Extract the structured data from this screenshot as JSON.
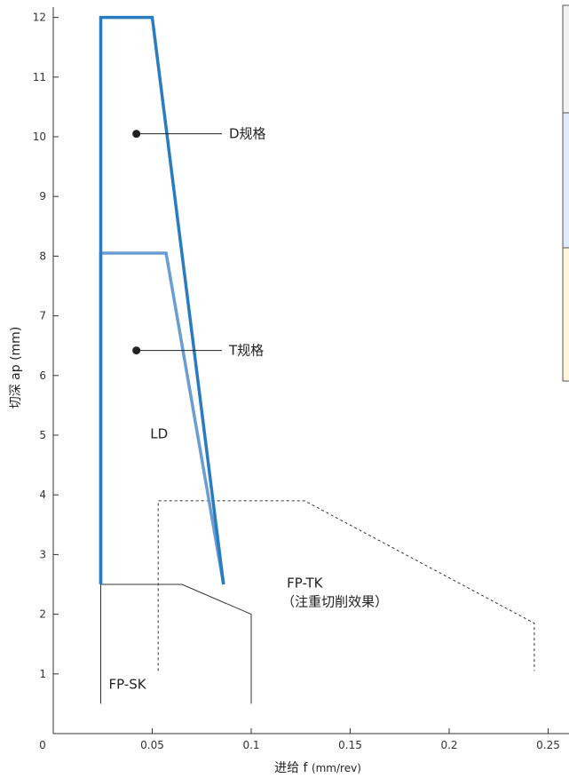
{
  "chart_data": {
    "type": "line",
    "title": "",
    "xlabel": "进给 f",
    "xlabel_unit": "(mm/rev)",
    "ylabel": "切深 ap (mm)",
    "xlim": [
      0,
      0.25
    ],
    "ylim": [
      0,
      12
    ],
    "x_ticks": [
      0,
      0.05,
      0.1,
      0.15,
      0.2,
      0.25
    ],
    "x_tick_labels": [
      "0",
      "0.05",
      "0.1",
      "0.15",
      "0.2",
      "0.25"
    ],
    "y_ticks": [
      1,
      2,
      3,
      4,
      5,
      6,
      7,
      8,
      9,
      10,
      11,
      12
    ],
    "y_tick_labels": [
      "1",
      "2",
      "3",
      "4",
      "5",
      "6",
      "7",
      "8",
      "9",
      "10",
      "11",
      "12"
    ],
    "grid": false,
    "regions": [
      {
        "name": "D规格",
        "label": "D规格",
        "color": "#2b7bbf",
        "style": "solid-thick",
        "points": [
          [
            0.024,
            2.5
          ],
          [
            0.024,
            12.0
          ],
          [
            0.05,
            12.0
          ],
          [
            0.086,
            2.5
          ]
        ],
        "marker": [
          0.042,
          10.05
        ]
      },
      {
        "name": "T规格",
        "label": "T规格",
        "color": "#6a9ed2",
        "style": "solid-thick",
        "points": [
          [
            0.024,
            2.5
          ],
          [
            0.024,
            8.05
          ],
          [
            0.057,
            8.05
          ],
          [
            0.086,
            2.5
          ]
        ],
        "marker": [
          0.042,
          6.42
        ]
      },
      {
        "name": "LD",
        "label": "LD",
        "label_at": [
          0.049,
          4.95
        ]
      },
      {
        "name": "FP-SK",
        "label": "FP-SK",
        "color": "#333333",
        "style": "solid-thin",
        "points": [
          [
            0.024,
            0.5
          ],
          [
            0.024,
            2.5
          ],
          [
            0.065,
            2.5
          ],
          [
            0.1,
            2.0
          ],
          [
            0.1,
            0.5
          ]
        ],
        "label_at": [
          0.028,
          0.75
        ]
      },
      {
        "name": "FP-TK",
        "label": "FP-TK",
        "sublabel": "（注重切削效果）",
        "color": "#333333",
        "style": "dashed",
        "points": [
          [
            0.053,
            1.05
          ],
          [
            0.053,
            3.9
          ],
          [
            0.127,
            3.9
          ],
          [
            0.243,
            1.85
          ],
          [
            0.243,
            1.05
          ]
        ],
        "label_at": [
          0.118,
          2.45
        ]
      }
    ]
  },
  "colors": {
    "axis": "#333333",
    "d_spec": "#2b7bbf",
    "t_spec": "#6a9ed2",
    "legend_bg_grey": "#f2f2f2",
    "legend_bg_blue": "#deebf8",
    "legend_bg_yellow": "#fdf6dc"
  }
}
